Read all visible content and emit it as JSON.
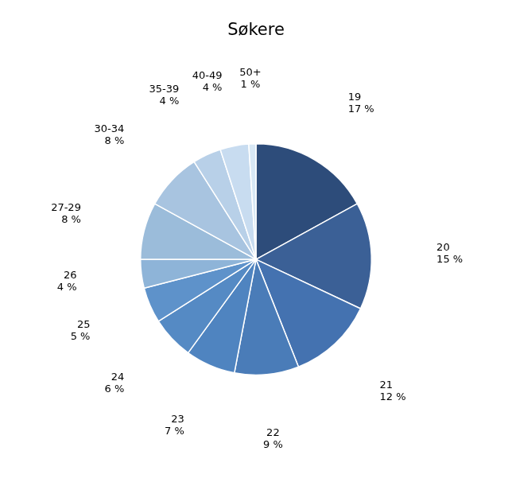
{
  "chart_data": {
    "type": "pie",
    "title": "Søkere",
    "categories": [
      "19",
      "20",
      "21",
      "22",
      "23",
      "24",
      "25",
      "26",
      "27-29",
      "30-34",
      "35-39",
      "40-49",
      "50+"
    ],
    "values": [
      17,
      15,
      12,
      9,
      7,
      6,
      5,
      4,
      8,
      8,
      4,
      4,
      1
    ],
    "value_labels": [
      "17 %",
      "15 %",
      "12 %",
      "9 %",
      "7 %",
      "6 %",
      "5 %",
      "4 %",
      "8 %",
      "8 %",
      "4 %",
      "4 %",
      "1 %"
    ],
    "colors": [
      "#2D4C7A",
      "#3B6096",
      "#4472B0",
      "#4A7CB8",
      "#4F84C0",
      "#558AC4",
      "#5E92CA",
      "#8EB4D8",
      "#9BBCDA",
      "#A8C4E0",
      "#B8D0E8",
      "#C8DCF0",
      "#D8E8F5"
    ],
    "data_labels": true
  }
}
